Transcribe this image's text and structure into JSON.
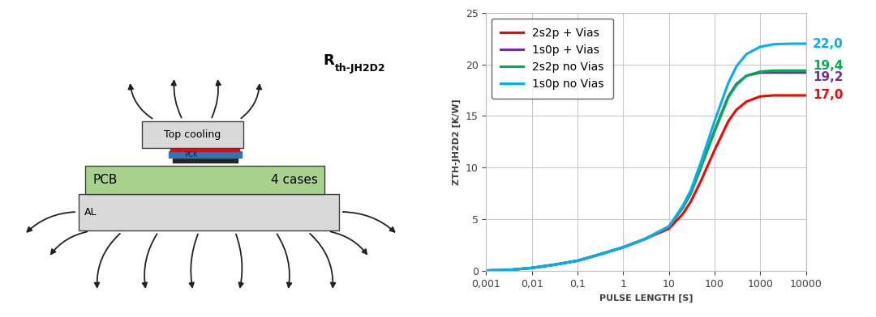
{
  "chart_data": {
    "type": "line",
    "xlabel": "PULSE LENGTH [S]",
    "ylabel": "ZTH-JH2D2 [K/W]",
    "log": "x",
    "grid": true,
    "legend": "upper left",
    "xlim": [
      0.001,
      10000
    ],
    "xticks": [
      {
        "value": 0.001,
        "label": "0,001"
      },
      {
        "value": 0.01,
        "label": "0,01"
      },
      {
        "value": 0.1,
        "label": "0,1"
      },
      1,
      10,
      100,
      1000,
      10000
    ],
    "ylim": [
      0,
      25
    ],
    "yticks": [
      0,
      5,
      10,
      15,
      20,
      25
    ],
    "x": [
      0.001,
      0.003,
      0.01,
      0.03,
      0.1,
      0.3,
      1,
      3,
      10,
      20,
      30,
      50,
      100,
      200,
      300,
      500,
      1000,
      2000,
      5000,
      10000
    ],
    "series": [
      {
        "name": "2s2p + Vias",
        "color": "#ff0000",
        "values": [
          0.05,
          0.1,
          0.3,
          0.6,
          1.0,
          1.6,
          2.3,
          3.1,
          4.1,
          5.5,
          6.7,
          8.7,
          11.7,
          14.5,
          15.6,
          16.4,
          16.9,
          17.0,
          17.0,
          17.0
        ],
        "end_value": 17.0,
        "end_label": "17,0"
      },
      {
        "name": "1s0p + Vias",
        "color": "#7030a0",
        "values": [
          0.05,
          0.1,
          0.3,
          0.6,
          1.0,
          1.6,
          2.3,
          3.1,
          4.3,
          6.1,
          7.5,
          10.0,
          13.6,
          16.9,
          18.1,
          18.9,
          19.2,
          19.2,
          19.2,
          19.2
        ],
        "end_value": 19.2,
        "end_label": "19,2"
      },
      {
        "name": "2s2p no Vias",
        "color": "#00b050",
        "values": [
          0.05,
          0.1,
          0.3,
          0.6,
          1.0,
          1.6,
          2.3,
          3.1,
          4.3,
          6.1,
          7.5,
          10.0,
          13.5,
          16.8,
          18.0,
          18.9,
          19.3,
          19.4,
          19.4,
          19.4
        ],
        "end_value": 19.4,
        "end_label": "19,4"
      },
      {
        "name": "1s0p no Vias",
        "color": "#00b0f0",
        "values": [
          0.05,
          0.1,
          0.3,
          0.6,
          1.0,
          1.6,
          2.3,
          3.1,
          4.3,
          6.3,
          7.8,
          10.5,
          14.5,
          18.2,
          19.8,
          21.0,
          21.7,
          21.95,
          22.0,
          22.0
        ],
        "end_value": 22.0,
        "end_label": "22,0"
      }
    ]
  },
  "diagram": {
    "title": {
      "main": "R",
      "sub": "th-JH2D2"
    },
    "blocks": {
      "top_cooling": "Top cooling",
      "package": "PCK",
      "pcb": "PCB",
      "pcb_note": "4 cases",
      "heatsink": "AL"
    }
  }
}
